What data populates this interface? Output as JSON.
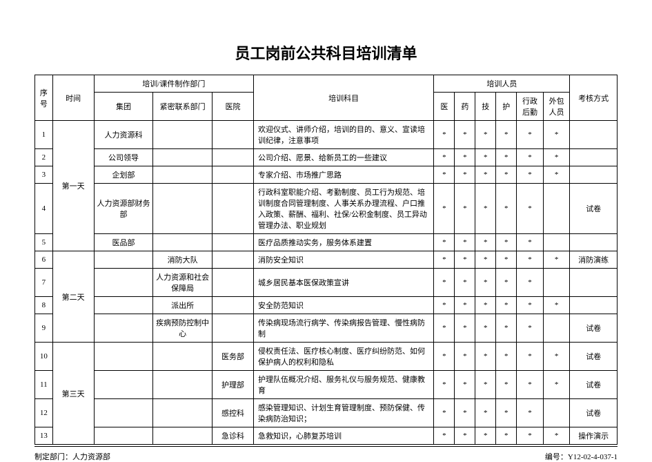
{
  "title": "员工岗前公共科目培训清单",
  "header": {
    "seq": "序号",
    "time": "时间",
    "deptGroup": "培训/课件制作部门",
    "group": "集团",
    "liaison": "紧密联系部门",
    "hospital": "医院",
    "subject": "培训科目",
    "trainees": "培训人员",
    "p1": "医",
    "p2": "药",
    "p3": "技",
    "p4": "护",
    "p5": "行政后勤",
    "p6": "外包人员",
    "assess": "考核方式"
  },
  "days": {
    "d1": "第一天",
    "d2": "第二天",
    "d3": "第三天"
  },
  "rows": {
    "r1": {
      "seq": "1",
      "group": "人力资源科",
      "liaison": "",
      "hospital": "",
      "subject": "欢迎仪式、讲师介绍，培训的目的、意义、宣读培训纪律，注意事项",
      "p1": "*",
      "p2": "*",
      "p3": "*",
      "p4": "*",
      "p5": "*",
      "p6": "*",
      "assess": ""
    },
    "r2": {
      "seq": "2",
      "group": "公司领导",
      "liaison": "",
      "hospital": "",
      "subject": "公司介绍、愿景、给新员工的一些建议",
      "p1": "*",
      "p2": "*",
      "p3": "*",
      "p4": "*",
      "p5": "*",
      "p6": "*",
      "assess": ""
    },
    "r3": {
      "seq": "3",
      "group": "企划部",
      "liaison": "",
      "hospital": "",
      "subject": "专家介绍、市场推广思路",
      "p1": "*",
      "p2": "*",
      "p3": "*",
      "p4": "*",
      "p5": "*",
      "p6": "*",
      "assess": ""
    },
    "r4": {
      "seq": "4",
      "group": "人力资源部财务部",
      "liaison": "",
      "hospital": "",
      "subject": "行政科室职能介绍、考勤制度、员工行为规范、培训制度合同管理制度、人事关系办理流程、户口推入政策、薪酬、福利、社保/公积金制度、员工异动管理办法、职业规划",
      "p1": "*",
      "p2": "*",
      "p3": "*",
      "p4": "*",
      "p5": "*",
      "p6": "",
      "assess": "试卷"
    },
    "r5": {
      "seq": "5",
      "group": "医品部",
      "liaison": "",
      "hospital": "",
      "subject": "医疗品质推动实务，服务体系建置",
      "p1": "*",
      "p2": "*",
      "p3": "*",
      "p4": "*",
      "p5": "*",
      "p6": "",
      "assess": ""
    },
    "r6": {
      "seq": "6",
      "group": "",
      "liaison": "消防大队",
      "hospital": "",
      "subject": "消防安全知识",
      "p1": "*",
      "p2": "*",
      "p3": "*",
      "p4": "*",
      "p5": "*",
      "p6": "*",
      "assess": "消防演练"
    },
    "r7": {
      "seq": "7",
      "group": "",
      "liaison": "人力资源和社会保障局",
      "hospital": "",
      "subject": "城乡居民基本医保政策宣讲",
      "p1": "*",
      "p2": "*",
      "p3": "*",
      "p4": "*",
      "p5": "*",
      "p6": "",
      "assess": ""
    },
    "r8": {
      "seq": "8",
      "group": "",
      "liaison": "派出所",
      "hospital": "",
      "subject": "安全防范知识",
      "p1": "*",
      "p2": "*",
      "p3": "*",
      "p4": "*",
      "p5": "*",
      "p6": "*",
      "assess": ""
    },
    "r9": {
      "seq": "9",
      "group": "",
      "liaison": "疾病预防控制中心",
      "hospital": "",
      "subject": "传染病现场流行病学、传染病报告管理、慢性病防制",
      "p1": "*",
      "p2": "*",
      "p3": "*",
      "p4": "*",
      "p5": "*",
      "p6": "",
      "assess": "试卷"
    },
    "r10": {
      "seq": "10",
      "group": "",
      "liaison": "",
      "hospital": "医务部",
      "subject": "侵权责任法、医疗核心制度、医疗纠纷防范、如何保护病人的权利和隐私",
      "p1": "*",
      "p2": "*",
      "p3": "*",
      "p4": "*",
      "p5": "*",
      "p6": "*",
      "assess": "试卷"
    },
    "r11": {
      "seq": "11",
      "group": "",
      "liaison": "",
      "hospital": "护理部",
      "subject": "护理队伍概况介绍、服务礼仪与服务规范、健康教育",
      "p1": "*",
      "p2": "*",
      "p3": "*",
      "p4": "*",
      "p5": "*",
      "p6": "*",
      "assess": "试卷"
    },
    "r12": {
      "seq": "12",
      "group": "",
      "liaison": "",
      "hospital": "感控科",
      "subject": "感染管理知识、计划生育管理制度、预防保健、传染病防治知识；",
      "p1": "*",
      "p2": "*",
      "p3": "*",
      "p4": "*",
      "p5": "*",
      "p6": "",
      "assess": "试卷"
    },
    "r13": {
      "seq": "13",
      "group": "",
      "liaison": "",
      "hospital": "急诊科",
      "subject": "急救知识，心肺复苏培训",
      "p1": "*",
      "p2": "*",
      "p3": "*",
      "p4": "*",
      "p5": "*",
      "p6": "*",
      "assess": "操作演示"
    }
  },
  "footer": {
    "left": "制定部门：人力资源部",
    "right": "编号：Y12-02-4-037-1"
  }
}
